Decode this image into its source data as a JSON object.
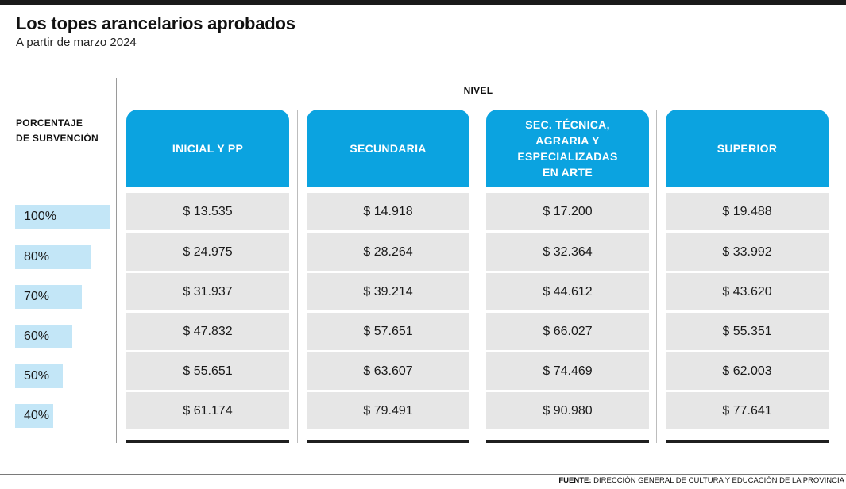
{
  "title": "Los topes arancelarios aprobados",
  "subtitle": "A partir de marzo 2024",
  "nivel_label": "NIVEL",
  "row_header": "PORCENTAJE\nDE SUBVENCIÓN",
  "source_label": "FUENTE:",
  "source_text": "DIRECCIÓN GENERAL DE CULTURA Y EDUCACIÓN DE LA PROVINCIA",
  "colors": {
    "header_blue": "#0ba3e0",
    "percent_bar": "#c3e6f7",
    "cell_gray": "#e6e6e6"
  },
  "chart_data": {
    "type": "table",
    "title": "Los topes arancelarios aprobados",
    "subtitle": "A partir de marzo 2024",
    "column_group": "NIVEL",
    "row_header": "PORCENTAJE DE SUBVENCIÓN",
    "columns": [
      {
        "name": "INICIAL Y PP",
        "values": [
          "$ 13.535",
          "$ 24.975",
          "$ 31.937",
          "$ 47.832",
          "$ 55.651",
          "$ 61.174"
        ]
      },
      {
        "name": "SECUNDARIA",
        "values": [
          "$ 14.918",
          "$ 28.264",
          "$ 39.214",
          "$ 57.651",
          "$ 63.607",
          "$ 79.491"
        ]
      },
      {
        "name": "SEC. TÉCNICA,\nAGRARIA Y\nESPECIALIZADAS\nEN ARTE",
        "values": [
          "$ 17.200",
          "$ 32.364",
          "$ 44.612",
          "$ 66.027",
          "$ 74.469",
          "$ 90.980"
        ]
      },
      {
        "name": "SUPERIOR",
        "values": [
          "$ 19.488",
          "$ 33.992",
          "$ 43.620",
          "$ 55.351",
          "$ 62.003",
          "$ 77.641"
        ]
      }
    ],
    "rows": [
      {
        "label": "100%",
        "value": 100
      },
      {
        "label": "80%",
        "value": 80
      },
      {
        "label": "70%",
        "value": 70
      },
      {
        "label": "60%",
        "value": 60
      },
      {
        "label": "50%",
        "value": 50
      },
      {
        "label": "40%",
        "value": 40
      }
    ]
  }
}
